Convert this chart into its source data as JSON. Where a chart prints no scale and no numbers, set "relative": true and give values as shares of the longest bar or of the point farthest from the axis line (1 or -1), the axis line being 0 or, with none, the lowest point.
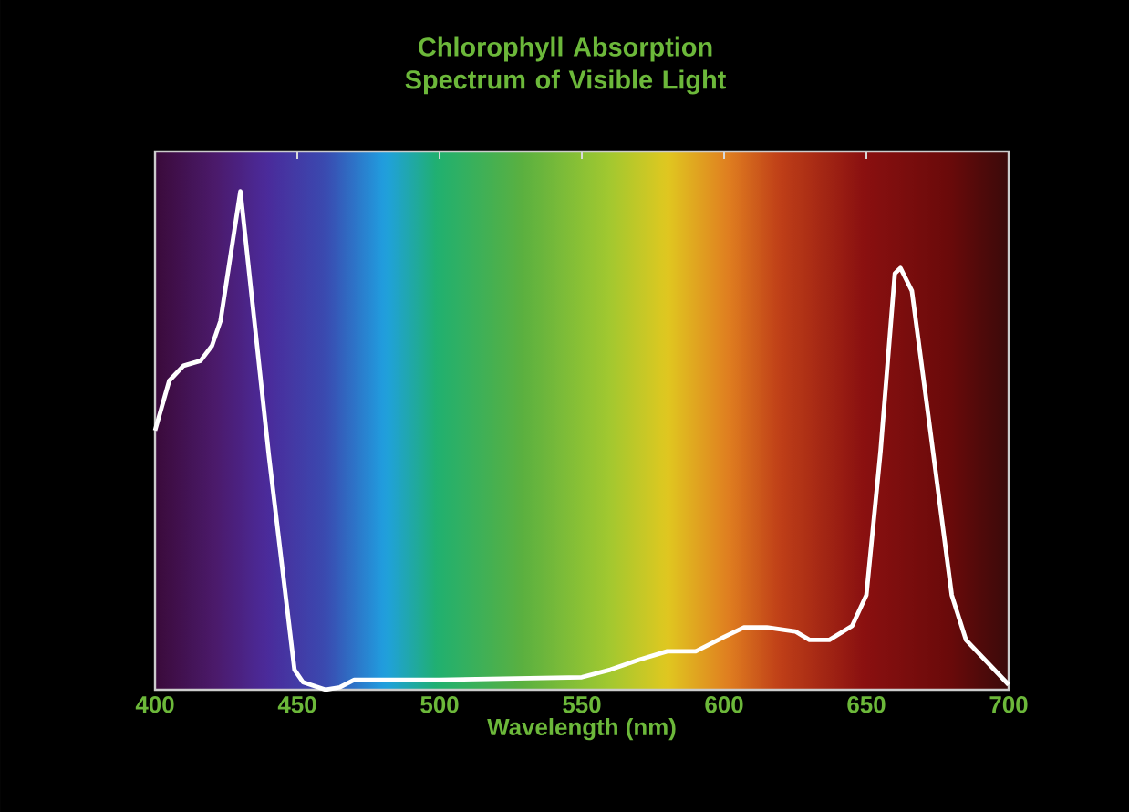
{
  "chart_data": {
    "type": "line",
    "title": "Chlorophyll Absorption Spectrum of Visible Light",
    "xlabel": "Wavelength (nm)",
    "relative": true,
    "x": [
      400,
      405,
      410,
      416,
      420,
      423,
      430,
      440,
      449,
      452,
      460,
      465,
      470,
      500,
      550,
      560,
      570,
      580,
      590,
      600,
      607,
      615,
      625,
      630,
      637,
      645,
      650,
      655,
      660,
      662,
      666,
      672,
      680,
      685,
      700
    ],
    "series": [
      {
        "color": "#ffffff",
        "values": [
          0.52,
          0.62,
          0.65,
          0.66,
          0.69,
          0.74,
          1,
          0.47,
          0.04,
          0.015,
          0,
          0.005,
          0.02,
          0.02,
          0.025,
          0.04,
          0.06,
          0.077,
          0.077,
          0.106,
          0.125,
          0.125,
          0.117,
          0.1,
          0.1,
          0.128,
          0.19,
          0.48,
          0.835,
          0.846,
          0.8,
          0.54,
          0.19,
          0.1,
          0.01
        ]
      }
    ],
    "xlim": [
      400,
      700
    ],
    "xticks": [
      400,
      450,
      500,
      550,
      600,
      650,
      700
    ],
    "grid": false,
    "marker": "none",
    "line_style": "solid"
  }
}
